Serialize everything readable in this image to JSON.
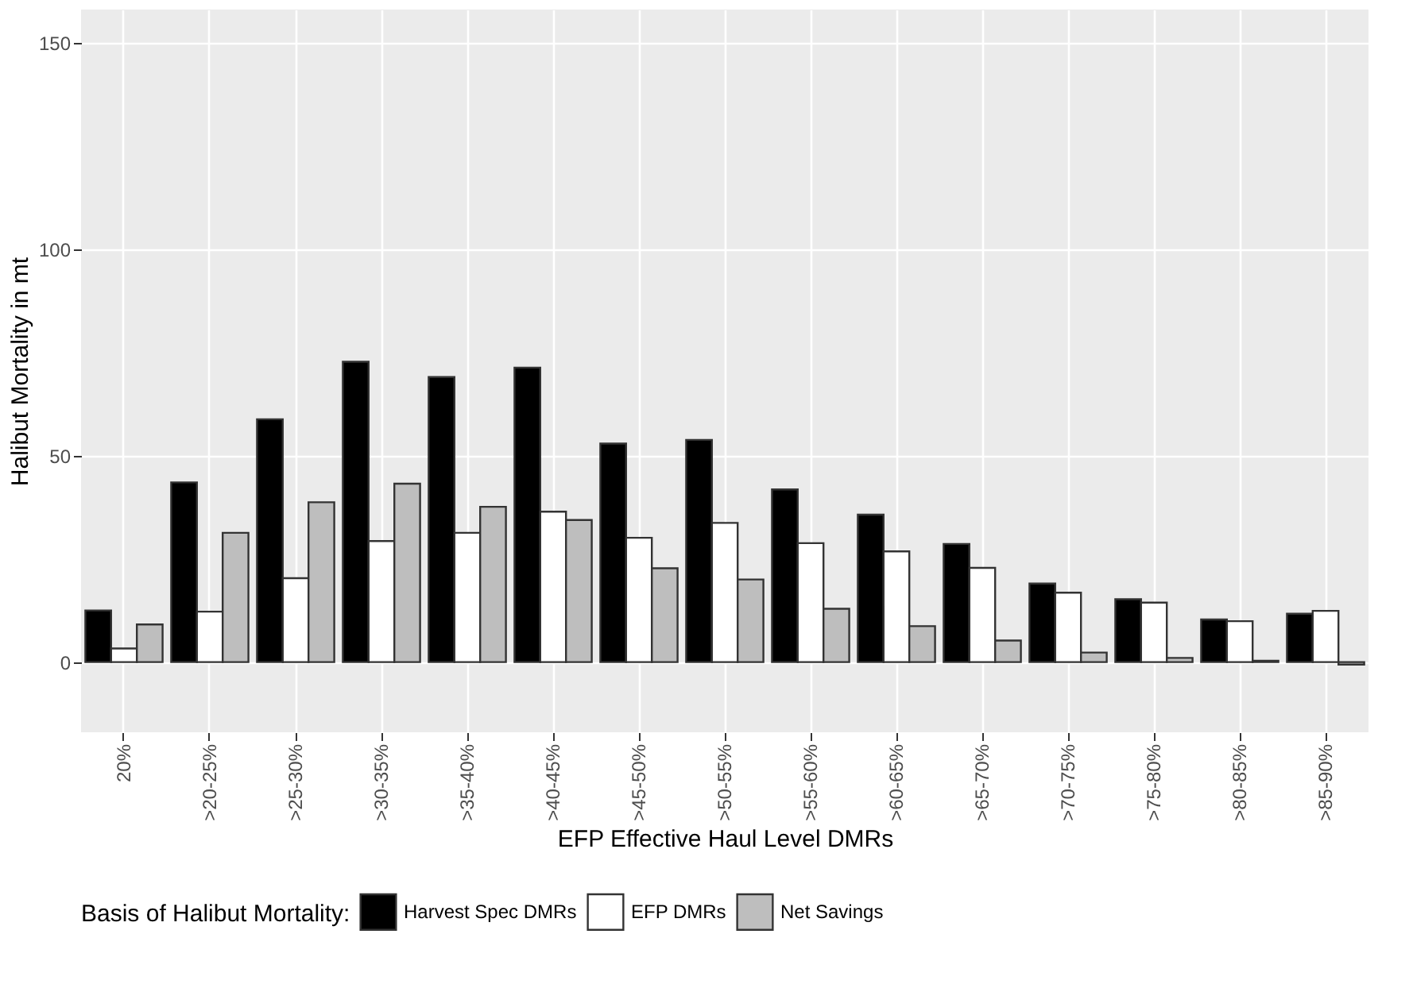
{
  "chart_data": {
    "type": "bar",
    "xlabel": "EFP Effective Haul Level DMRs",
    "ylabel": "Halibut Mortality in mt",
    "legend_title": "Basis of Halibut Mortality:",
    "categories": [
      "20%",
      ">20-25%",
      ">25-30%",
      ">30-35%",
      ">35-40%",
      ">40-45%",
      ">45-50%",
      ">50-55%",
      ">55-60%",
      ">60-65%",
      ">65-70%",
      ">70-75%",
      ">75-80%",
      ">80-85%",
      ">85-90%"
    ],
    "series": [
      {
        "name": "Harvest Spec DMRs",
        "color": "#000000",
        "values": [
          12.5,
          43.5,
          58.8,
          72.7,
          69,
          71.3,
          52.9,
          53.8,
          41.8,
          35.7,
          28.6,
          19,
          15.2,
          10.3,
          11.7
        ]
      },
      {
        "name": "EFP DMRs",
        "color": "#ffffff",
        "values": [
          3.3,
          12.2,
          20.3,
          29.3,
          31.3,
          36.4,
          30.1,
          33.7,
          28.8,
          26.8,
          22.8,
          16.8,
          14.4,
          9.9,
          12.4
        ]
      },
      {
        "name": "Net Savings",
        "color": "#bebebe",
        "values": [
          9.1,
          31.3,
          38.7,
          43.2,
          37.6,
          34.4,
          22.7,
          20,
          12.9,
          8.7,
          5.2,
          2.3,
          1,
          0.3,
          -0.6
        ]
      }
    ],
    "ylim": [
      -17,
      158
    ],
    "yticks": [
      0,
      50,
      100,
      150
    ],
    "grid": true,
    "legend": "bottom"
  }
}
